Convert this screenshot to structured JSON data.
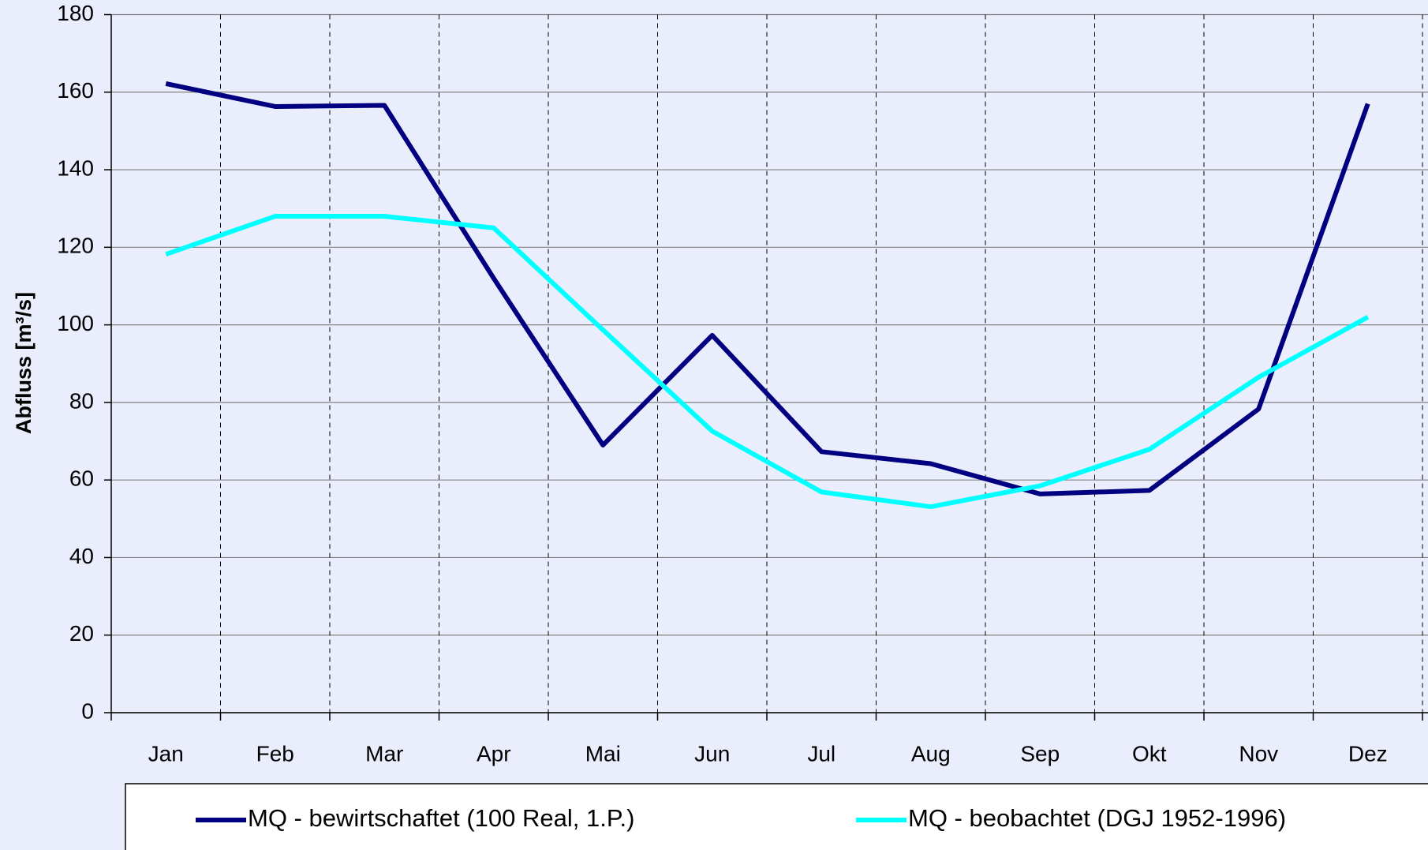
{
  "chart_data": {
    "type": "line",
    "y_label": "Abfluss [m³/s]",
    "categories": [
      "Jan",
      "Feb",
      "Mar",
      "Apr",
      "Mai",
      "Jun",
      "Jul",
      "Aug",
      "Sep",
      "Okt",
      "Nov",
      "Dez"
    ],
    "series": [
      {
        "name": "MQ - bewirtschaftet (100 Real, 1.P.)",
        "color": "#000080",
        "values": [
          162.2,
          156.3,
          156.6,
          112,
          69,
          97.3,
          67.3,
          64.2,
          56.4,
          57.3,
          78.3,
          157
        ]
      },
      {
        "name": "MQ - beobachtet (DGJ 1952-1996)",
        "color": "#00ffff",
        "values": [
          118.2,
          128,
          128,
          125,
          98.7,
          72.6,
          56.9,
          53.1,
          58.5,
          67.9,
          86.5,
          102
        ]
      }
    ],
    "ylim": [
      0,
      180
    ],
    "yticks": [
      0,
      20,
      40,
      60,
      80,
      100,
      120,
      140,
      160,
      180
    ],
    "grid": true
  }
}
